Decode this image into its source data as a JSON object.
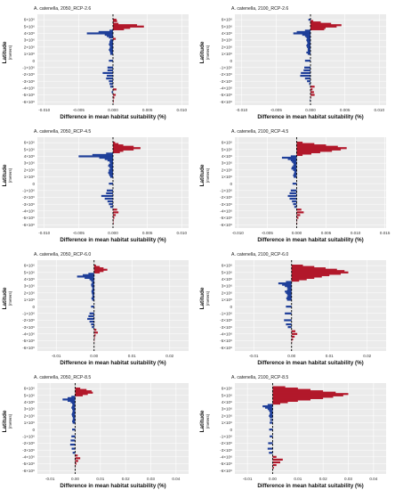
{
  "species": "A. catenella",
  "y_axis_label": "Latitude",
  "y_axis_unit": "(meters)",
  "x_axis_label": "Difference in mean habitat suitability (%)",
  "y_tick_labels": [
    "6×10⁶",
    "5×10⁶",
    "4×10⁶",
    "3×10⁶",
    "2×10⁶",
    "1×10⁶",
    "0",
    "-1×10⁶",
    "-2×10⁶",
    "-3×10⁶",
    "-4×10⁶",
    "-5×10⁶",
    "-6×10⁶"
  ],
  "colors": {
    "positive": "#b2182b",
    "negative": "#1f3f99",
    "panel_bg": "#ebebeb",
    "grid": "#ffffff",
    "zero_line": "#000000"
  },
  "chart_data": [
    {
      "type": "bar",
      "orientation": "horizontal",
      "title": "A. catenella, 2050_RCP-2.6",
      "xlabel": "Difference in mean habitat suitability (%)",
      "ylabel": "Latitude (meters)",
      "xlim": [
        -0.011,
        0.011
      ],
      "ylim": [
        -6500000,
        6800000
      ],
      "xticks": [
        -0.01,
        -0.005,
        0.0,
        0.005,
        0.01
      ],
      "xtick_labels": [
        "-0.010",
        "-0.005",
        "0.000",
        "0.005",
        "0.010"
      ],
      "yticks": [
        6000000,
        5000000,
        4000000,
        3000000,
        2000000,
        1000000,
        0,
        -1000000,
        -2000000,
        -3000000,
        -4000000,
        -5000000,
        -6000000
      ],
      "grid": true,
      "zero_line": "dashed",
      "x": [
        0.0005,
        0.0006,
        0.0001,
        0.0008,
        0.0035,
        0.0045,
        0.0025,
        0.0016,
        -0.0005,
        -0.0021,
        -0.0038,
        -0.0012,
        -0.0009,
        -0.0006,
        0.0004,
        -0.0004,
        -0.0005,
        -0.0005,
        -0.0006,
        -0.0005,
        -0.0004,
        -0.0005,
        -0.0006,
        -0.0005,
        -0.0004,
        -0.0004,
        -0.0006,
        -0.0008,
        -0.0008,
        -0.0015,
        -0.0009,
        -0.001,
        -0.0006,
        -0.0005,
        -0.0004,
        0.0005,
        -0.0002,
        0.0004,
        0.0002,
        0.0001,
        0.0001
      ],
      "y": [
        6000000,
        5800000,
        5600000,
        5400000,
        5200000,
        5000000,
        4800000,
        4600000,
        4400000,
        4200000,
        4000000,
        3800000,
        3600000,
        3400000,
        3200000,
        3000000,
        2800000,
        2600000,
        2400000,
        2200000,
        2000000,
        1800000,
        1600000,
        1400000,
        1200000,
        1000000,
        0,
        -1000000,
        -1400000,
        -1800000,
        -2200000,
        -2600000,
        -3000000,
        -3400000,
        -3800000,
        -4200000,
        -4600000,
        -5000000,
        -5400000,
        -5800000,
        -6000000
      ]
    },
    {
      "type": "bar",
      "orientation": "horizontal",
      "title": "A. catenella, 2100_RCP-2.6",
      "xlabel": "Difference in mean habitat suitability (%)",
      "ylabel": "Latitude (meters)",
      "xlim": [
        -0.011,
        0.011
      ],
      "ylim": [
        -6500000,
        6800000
      ],
      "xticks": [
        -0.01,
        -0.005,
        0.0,
        0.005,
        0.01
      ],
      "xtick_labels": [
        "-0.010",
        "-0.005",
        "0.000",
        "0.005",
        "0.010"
      ],
      "yticks": [
        6000000,
        5000000,
        4000000,
        3000000,
        2000000,
        1000000,
        0,
        -1000000,
        -2000000,
        -3000000,
        -4000000,
        -5000000,
        -6000000
      ],
      "grid": true,
      "zero_line": "dashed",
      "x": [
        -0.0003,
        0.0004,
        0.0015,
        0.003,
        0.0045,
        0.0038,
        0.0022,
        0.002,
        -0.0008,
        -0.002,
        -0.0025,
        -0.0012,
        -0.0008,
        -0.0006,
        -0.0005,
        -0.0006,
        -0.0005,
        -0.0004,
        -0.0005,
        -0.0006,
        -0.0005,
        -0.0004,
        -0.0004,
        -0.0004,
        -0.0006,
        -0.0004,
        -0.0008,
        -0.0009,
        -0.001,
        -0.0014,
        -0.0015,
        -0.0008,
        -0.0005,
        -0.0002,
        0.0006,
        0.0003,
        0.0005,
        0.0006,
        0.0001,
        -0.0001
      ],
      "y": [
        6000000,
        5800000,
        5600000,
        5400000,
        5200000,
        5000000,
        4800000,
        4600000,
        4400000,
        4200000,
        4000000,
        3800000,
        3600000,
        3400000,
        3200000,
        3000000,
        2800000,
        2600000,
        2400000,
        2200000,
        2000000,
        1800000,
        1600000,
        1400000,
        1200000,
        1000000,
        0,
        -1000000,
        -1400000,
        -1800000,
        -2200000,
        -2600000,
        -3000000,
        -3400000,
        -3800000,
        -4200000,
        -4600000,
        -5000000,
        -5400000,
        -5800000
      ]
    },
    {
      "type": "bar",
      "orientation": "horizontal",
      "title": "A. catenella, 2050_RCP-4.5",
      "xlabel": "Difference in mean habitat suitability (%)",
      "ylabel": "Latitude (meters)",
      "xlim": [
        -0.011,
        0.011
      ],
      "ylim": [
        -6500000,
        6800000
      ],
      "xticks": [
        -0.01,
        -0.005,
        0.0,
        0.005,
        0.01
      ],
      "xtick_labels": [
        "-0.010",
        "-0.005",
        "0.000",
        "0.005",
        "0.010"
      ],
      "yticks": [
        6000000,
        5000000,
        4000000,
        3000000,
        2000000,
        1000000,
        0,
        -1000000,
        -2000000,
        -3000000,
        -4000000,
        -5000000,
        -6000000
      ],
      "grid": true,
      "zero_line": "dashed",
      "x": [
        0.0003,
        0.0008,
        0.0015,
        0.003,
        0.004,
        0.003,
        0.0015,
        0.001,
        -0.001,
        -0.003,
        -0.005,
        -0.002,
        -0.0012,
        -0.0008,
        -0.0005,
        -0.0004,
        -0.0006,
        -0.0007,
        -0.0005,
        -0.0004,
        -0.0006,
        -0.0006,
        -0.0007,
        -0.0006,
        -0.0005,
        -0.0004,
        -0.0006,
        -0.0009,
        -0.001,
        -0.0017,
        -0.0012,
        -0.0008,
        -0.0006,
        -0.0004,
        0.0006,
        0.0008,
        0.0004,
        0.0002,
        0.0001,
        0.0001
      ],
      "y": [
        6000000,
        5800000,
        5600000,
        5400000,
        5200000,
        5000000,
        4800000,
        4600000,
        4400000,
        4200000,
        4000000,
        3800000,
        3600000,
        3400000,
        3200000,
        3000000,
        2800000,
        2600000,
        2400000,
        2200000,
        2000000,
        1800000,
        1600000,
        1400000,
        1200000,
        1000000,
        0,
        -1000000,
        -1400000,
        -1800000,
        -2200000,
        -2600000,
        -3000000,
        -3400000,
        -3800000,
        -4200000,
        -4600000,
        -5000000,
        -5400000,
        -5800000
      ]
    },
    {
      "type": "bar",
      "orientation": "horizontal",
      "title": "A. catenella, 2100_RCP-4.5",
      "xlabel": "Difference in mean habitat suitability (%)",
      "ylabel": "Latitude (meters)",
      "xlim": [
        -0.0105,
        0.0152
      ],
      "ylim": [
        -6500000,
        6800000
      ],
      "xticks": [
        -0.01,
        -0.005,
        0.0,
        0.005,
        0.01,
        0.015
      ],
      "xtick_labels": [
        "-0.010",
        "-0.005",
        "0.000",
        "0.005",
        "0.010",
        "0.015"
      ],
      "yticks": [
        6000000,
        5000000,
        4000000,
        3000000,
        2000000,
        1000000,
        0,
        -1000000,
        -2000000,
        -3000000,
        -4000000,
        -5000000,
        -6000000
      ],
      "grid": true,
      "zero_line": "dashed",
      "x": [
        0.001,
        0.003,
        0.005,
        0.007,
        0.0085,
        0.0075,
        0.006,
        0.004,
        0.0025,
        0.001,
        -0.001,
        -0.0025,
        -0.0015,
        -0.001,
        -0.0008,
        -0.0006,
        -0.0005,
        -0.0006,
        -0.0008,
        -0.0009,
        -0.0006,
        -0.0004,
        -0.0004,
        -0.0005,
        -0.0006,
        -0.0005,
        -0.0007,
        -0.001,
        -0.0012,
        -0.0015,
        -0.0012,
        -0.0008,
        -0.0006,
        -0.0004,
        0.0008,
        0.0012,
        0.0006,
        0.0003,
        0.0001,
        0.0001
      ],
      "y": [
        6000000,
        5800000,
        5600000,
        5400000,
        5200000,
        5000000,
        4800000,
        4600000,
        4400000,
        4200000,
        4000000,
        3800000,
        3600000,
        3400000,
        3200000,
        3000000,
        2800000,
        2600000,
        2400000,
        2200000,
        2000000,
        1800000,
        1600000,
        1400000,
        1200000,
        1000000,
        0,
        -1000000,
        -1400000,
        -1800000,
        -2200000,
        -2600000,
        -3000000,
        -3400000,
        -3800000,
        -4200000,
        -4600000,
        -5000000,
        -5400000,
        -5800000
      ]
    },
    {
      "type": "bar",
      "orientation": "horizontal",
      "title": "A. catenella, 2050_RCP-6.0",
      "xlabel": "Difference in mean habitat suitability (%)",
      "ylabel": "Latitude (meters)",
      "xlim": [
        -0.015,
        0.025
      ],
      "ylim": [
        -6500000,
        6800000
      ],
      "xticks": [
        -0.01,
        0.0,
        0.01,
        0.02
      ],
      "xtick_labels": [
        "-0.01",
        "0.00",
        "0.01",
        "0.02"
      ],
      "yticks": [
        6000000,
        5000000,
        4000000,
        3000000,
        2000000,
        1000000,
        0,
        -1000000,
        -2000000,
        -3000000,
        -4000000,
        -5000000,
        -6000000
      ],
      "grid": true,
      "zero_line": "dashed",
      "x": [
        0.0005,
        0.0015,
        0.0025,
        0.0035,
        0.0025,
        0.0015,
        -0.0015,
        -0.003,
        -0.0045,
        -0.0025,
        -0.0012,
        -0.0008,
        -0.0005,
        -0.0006,
        -0.0008,
        -0.0007,
        -0.0005,
        -0.0004,
        -0.0006,
        -0.0007,
        -0.0006,
        -0.0005,
        -0.0004,
        -0.0005,
        -0.0007,
        -0.0005,
        -0.0008,
        -0.0012,
        -0.0015,
        -0.0018,
        -0.0012,
        -0.0008,
        -0.0006,
        0.0006,
        0.001,
        0.0004,
        0.0002,
        0.0001
      ],
      "y": [
        6000000,
        5800000,
        5600000,
        5400000,
        5200000,
        5000000,
        4800000,
        4600000,
        4400000,
        4200000,
        4000000,
        3800000,
        3600000,
        3400000,
        3200000,
        3000000,
        2800000,
        2600000,
        2400000,
        2200000,
        2000000,
        1800000,
        1600000,
        1400000,
        1200000,
        1000000,
        0,
        -1000000,
        -1400000,
        -1800000,
        -2200000,
        -2600000,
        -3000000,
        -3400000,
        -3800000,
        -4200000,
        -4600000,
        -5000000
      ]
    },
    {
      "type": "bar",
      "orientation": "horizontal",
      "title": "A. catenella, 2100_RCP-6.0",
      "xlabel": "Difference in mean habitat suitability (%)",
      "ylabel": "Latitude (meters)",
      "xlim": [
        -0.015,
        0.025
      ],
      "ylim": [
        -6500000,
        6800000
      ],
      "xticks": [
        -0.01,
        0.0,
        0.01,
        0.02
      ],
      "xtick_labels": [
        "-0.01",
        "0.00",
        "0.01",
        "0.02"
      ],
      "yticks": [
        6000000,
        5000000,
        4000000,
        3000000,
        2000000,
        1000000,
        0,
        -1000000,
        -2000000,
        -3000000,
        -4000000,
        -5000000,
        -6000000
      ],
      "grid": true,
      "zero_line": "dashed",
      "x": [
        0.003,
        0.006,
        0.009,
        0.012,
        0.014,
        0.015,
        0.013,
        0.01,
        0.008,
        0.006,
        0.004,
        0.002,
        -0.0015,
        -0.0035,
        -0.0025,
        -0.0018,
        -0.0012,
        -0.001,
        -0.0012,
        -0.0018,
        -0.0015,
        -0.0012,
        -0.001,
        -0.0012,
        -0.0014,
        -0.0012,
        -0.0015,
        -0.0018,
        -0.002,
        -0.0015,
        -0.001,
        0.001,
        0.0015,
        0.0008,
        0.0004,
        0.0001
      ],
      "y": [
        6000000,
        5800000,
        5600000,
        5400000,
        5200000,
        5000000,
        4800000,
        4600000,
        4400000,
        4200000,
        4000000,
        3800000,
        3600000,
        3400000,
        3200000,
        3000000,
        2800000,
        2600000,
        2400000,
        2200000,
        2000000,
        1800000,
        1600000,
        1400000,
        1200000,
        1000000,
        0,
        -1000000,
        -2000000,
        -2600000,
        -3000000,
        -3600000,
        -4000000,
        -4400000,
        -4800000,
        -5200000
      ]
    },
    {
      "type": "bar",
      "orientation": "horizontal",
      "title": "A. catenella, 2050_RCP-8.5",
      "xlabel": "Difference in mean habitat suitability (%)",
      "ylabel": "Latitude (meters)",
      "xlim": [
        -0.015,
        0.045
      ],
      "ylim": [
        -6500000,
        6800000
      ],
      "xticks": [
        -0.01,
        0.0,
        0.01,
        0.02,
        0.03,
        0.04
      ],
      "xtick_labels": [
        "-0.01",
        "0.00",
        "0.01",
        "0.02",
        "0.03",
        "0.04"
      ],
      "yticks": [
        6000000,
        5000000,
        4000000,
        3000000,
        2000000,
        1000000,
        0,
        -1000000,
        -2000000,
        -3000000,
        -4000000,
        -5000000,
        -6000000
      ],
      "grid": true,
      "zero_line": "dashed",
      "x": [
        0.002,
        0.0045,
        0.0065,
        0.007,
        0.005,
        0.003,
        -0.0015,
        -0.003,
        -0.005,
        -0.003,
        -0.0018,
        -0.0012,
        -0.001,
        -0.0012,
        -0.0015,
        -0.0012,
        -0.001,
        -0.001,
        -0.0012,
        -0.0014,
        -0.0012,
        -0.001,
        -0.0008,
        -0.001,
        -0.0012,
        -0.001,
        -0.0012,
        -0.0015,
        -0.0018,
        -0.002,
        -0.0014,
        -0.001,
        0.001,
        0.002,
        0.0012,
        0.0005,
        0.0002
      ],
      "y": [
        6000000,
        5800000,
        5600000,
        5400000,
        5200000,
        5000000,
        4800000,
        4600000,
        4400000,
        4200000,
        4000000,
        3800000,
        3600000,
        3400000,
        3200000,
        3000000,
        2800000,
        2600000,
        2400000,
        2200000,
        2000000,
        1800000,
        1600000,
        1400000,
        1200000,
        1000000,
        0,
        -1000000,
        -1600000,
        -2200000,
        -2800000,
        -3400000,
        -3800000,
        -4200000,
        -4600000,
        -5000000,
        -5400000
      ]
    },
    {
      "type": "bar",
      "orientation": "horizontal",
      "title": "A. catenella, 2100_RCP-8.5",
      "xlabel": "Difference in mean habitat suitability (%)",
      "ylabel": "Latitude (meters)",
      "xlim": [
        -0.015,
        0.045
      ],
      "ylim": [
        -6500000,
        6800000
      ],
      "xticks": [
        -0.01,
        0.0,
        0.01,
        0.02,
        0.03,
        0.04
      ],
      "xtick_labels": [
        "-0.01",
        "0.00",
        "0.01",
        "0.02",
        "0.03",
        "0.04"
      ],
      "yticks": [
        6000000,
        5000000,
        4000000,
        3000000,
        2000000,
        1000000,
        0,
        -1000000,
        -2000000,
        -3000000,
        -4000000,
        -5000000,
        -6000000
      ],
      "grid": true,
      "zero_line": "dashed",
      "x": [
        0.005,
        0.01,
        0.015,
        0.02,
        0.025,
        0.03,
        0.028,
        0.024,
        0.02,
        0.015,
        0.01,
        0.006,
        0.003,
        -0.002,
        -0.004,
        -0.003,
        -0.002,
        -0.0015,
        -0.0012,
        -0.001,
        -0.0012,
        -0.0015,
        -0.0012,
        -0.001,
        -0.0012,
        -0.0014,
        -0.0012,
        -0.0018,
        -0.002,
        -0.0015,
        0.0015,
        0.004,
        0.003,
        0.0015,
        0.0005
      ],
      "y": [
        6200000,
        6000000,
        5800000,
        5600000,
        5400000,
        5200000,
        5000000,
        4800000,
        4600000,
        4400000,
        4200000,
        4000000,
        3800000,
        3600000,
        3400000,
        3200000,
        3000000,
        2800000,
        2600000,
        2400000,
        2200000,
        2000000,
        1800000,
        1400000,
        1000000,
        0,
        -1000000,
        -2000000,
        -2800000,
        -3400000,
        -4000000,
        -4400000,
        -4800000,
        -5200000,
        -5600000
      ]
    }
  ]
}
